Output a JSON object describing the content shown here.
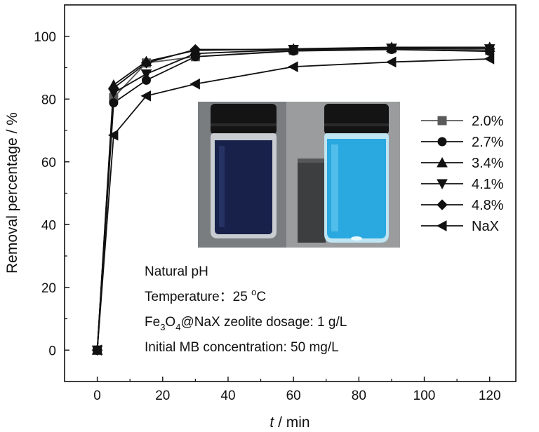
{
  "chart_data": {
    "type": "line",
    "xlabel": {
      "var": "t",
      "unit": " / min"
    },
    "ylabel": "Removal percentage / %",
    "xlim": [
      -10,
      128
    ],
    "ylim": [
      -10,
      110
    ],
    "xticks": [
      0,
      20,
      40,
      60,
      80,
      100,
      120
    ],
    "yticks": [
      0,
      20,
      40,
      60,
      80,
      100
    ],
    "grid": false,
    "legend_position": "right, middle",
    "x": [
      0,
      5,
      15,
      30,
      60,
      90,
      120
    ],
    "series": [
      {
        "name": "2.0%",
        "marker": "square",
        "color": "#5a5a5a",
        "values": [
          0,
          80.5,
          91.5,
          93.5,
          95.5,
          96.0,
          95.5
        ]
      },
      {
        "name": "2.7%",
        "marker": "circle",
        "color": "#111111",
        "values": [
          0,
          78.8,
          86.0,
          93.5,
          95.3,
          95.8,
          95.2
        ]
      },
      {
        "name": "3.4%",
        "marker": "triangle-up",
        "color": "#111111",
        "values": [
          0,
          84.5,
          92.0,
          95.5,
          96.0,
          96.5,
          96.5
        ]
      },
      {
        "name": "4.1%",
        "marker": "triangle-down",
        "color": "#111111",
        "values": [
          0,
          82.0,
          88.0,
          94.5,
          95.8,
          96.2,
          96.0
        ]
      },
      {
        "name": "4.8%",
        "marker": "diamond",
        "color": "#111111",
        "values": [
          0,
          83.5,
          91.5,
          95.8,
          95.8,
          96.2,
          96.0
        ]
      },
      {
        "name": "NaX",
        "marker": "triangle-left",
        "color": "#111111",
        "values": [
          0,
          68.5,
          81.0,
          84.8,
          90.3,
          91.8,
          92.8
        ]
      }
    ],
    "annotations": [
      {
        "id": "ph",
        "text": "Natural pH"
      },
      {
        "id": "temp",
        "pre": "Temperature：25 ",
        "sup": "o",
        "post": "C"
      },
      {
        "id": "dosage",
        "a": "Fe",
        "s1": "3",
        "b": "O",
        "s2": "4",
        "c": "@NaX zeolite dosage: 1 g/L"
      },
      {
        "id": "conc",
        "text": "Initial MB concentration: 50 mg/L"
      }
    ],
    "inset": {
      "type": "photo",
      "left_liquid": "#1a2550",
      "right_liquid": "#2aa8e0"
    }
  }
}
